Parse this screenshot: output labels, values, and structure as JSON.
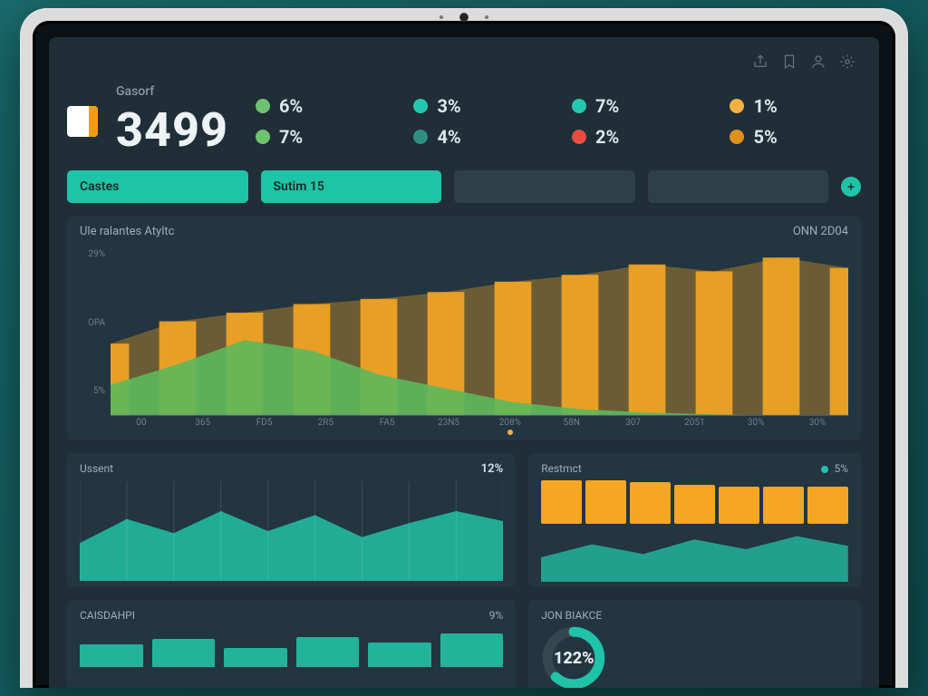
{
  "theme": {
    "bg_outer": "#1a6b6e",
    "device_frame": "#dcdcdc",
    "screen_bg": "#0b1114",
    "dashboard_bg": "#1f2e37",
    "panel_bg": "#233540",
    "text_primary": "#eef3f5",
    "text_muted": "#8a99a2",
    "accent_teal": "#1fc4a8",
    "accent_orange": "#f5a623",
    "accent_green": "#5cb85c",
    "tab_inactive_bg": "#2d3f49"
  },
  "topbar_icons": [
    "share-icon",
    "bookmark-icon",
    "user-icon",
    "settings-icon"
  ],
  "header": {
    "metric_label": "Gasorf",
    "metric_value": "3499"
  },
  "stats": [
    {
      "color": "#6fc26f",
      "value": "6%"
    },
    {
      "color": "#23c7ae",
      "value": "3%"
    },
    {
      "color": "#23c7ae",
      "value": "7%"
    },
    {
      "color": "#f5b041",
      "value": "1%"
    },
    {
      "color": "#6fc26f",
      "value": "7%"
    },
    {
      "color": "#2e8f82",
      "value": "4%"
    },
    {
      "color": "#e74c3c",
      "value": "2%"
    },
    {
      "color": "#e28f1e",
      "value": "5%"
    }
  ],
  "tabs": [
    {
      "label": "Castes",
      "active": true
    },
    {
      "label": "Sutim 15",
      "active": true
    },
    {
      "label": "",
      "active": false
    },
    {
      "label": "",
      "active": false
    }
  ],
  "main_chart": {
    "title": "Ule ralantes Atyltc",
    "range_label": "ONN 2D04",
    "type": "area+bar",
    "y_ticks": [
      "29%",
      "OPA",
      "5%"
    ],
    "x_ticks": [
      "00",
      "365",
      "FD5",
      "2R5",
      "FA5",
      "23N5",
      "208%",
      "58N",
      "307",
      "2051",
      "30%",
      "30%"
    ],
    "separator_index": 6,
    "orange_series": {
      "color": "#f5a623",
      "values": [
        42,
        55,
        60,
        65,
        68,
        72,
        78,
        82,
        88,
        84,
        92,
        86
      ]
    },
    "green_series": {
      "color": "#5cb85c",
      "values": [
        18,
        30,
        44,
        38,
        24,
        16,
        8,
        4,
        2,
        1,
        0,
        0
      ]
    },
    "y_max": 100,
    "grid_color": "#3a4b55"
  },
  "lower_left": {
    "title": "Ussent",
    "kpi": "12%",
    "type": "area",
    "color": "#22b39b",
    "values": [
      38,
      62,
      48,
      70,
      50,
      66,
      44,
      58,
      70,
      60
    ],
    "y_max": 100
  },
  "lower_right": {
    "title": "Restmct",
    "legend_color": "#1fc4a8",
    "legend_value": "5%",
    "type": "bar-strip",
    "bar_color": "#f5a623",
    "bars": [
      1,
      1,
      0.96,
      0.9,
      0.86,
      0.86,
      0.86
    ]
  },
  "bottom_left": {
    "title": "CAISDAHPI",
    "kpi": "9%",
    "type": "bar",
    "bar_color": "#22b39b",
    "values": [
      0.55,
      0.68,
      0.46,
      0.72,
      0.58,
      0.8
    ]
  },
  "bottom_right": {
    "title": "JON BIAKCE",
    "type": "donut",
    "value_label": "122%",
    "ring_bg": "#34474f",
    "ring_fg": "#1fc4a8",
    "fraction": 0.62
  }
}
